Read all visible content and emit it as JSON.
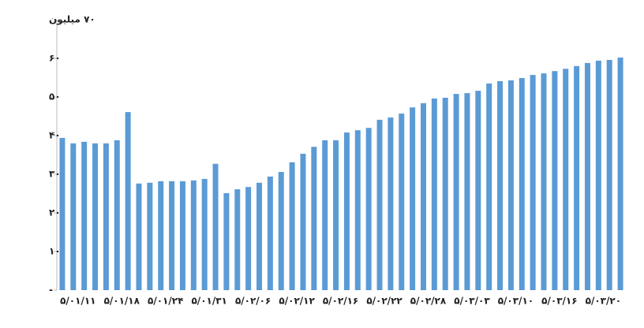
{
  "chart_data": {
    "type": "bar",
    "categories": [
      null,
      "۵/۰۱/۱۱",
      null,
      null,
      null,
      "۵/۰۱/۱۸",
      null,
      null,
      null,
      "۵/۰۱/۲۴",
      null,
      null,
      null,
      "۵/۰۱/۳۱",
      null,
      null,
      null,
      "۵/۰۲/۰۶",
      null,
      null,
      null,
      "۵/۰۲/۱۲",
      null,
      null,
      null,
      "۵/۰۲/۱۶",
      null,
      null,
      null,
      "۵/۰۲/۲۲",
      null,
      null,
      null,
      "۵/۰۲/۲۸",
      null,
      null,
      null,
      "۵/۰۳/۰۳",
      null,
      null,
      null,
      "۵/۰۳/۱۰",
      null,
      null,
      null,
      "۵/۰۳/۱۶",
      null,
      null,
      null,
      "۵/۰۳/۲۰",
      null,
      null
    ],
    "values": [
      39.4,
      38,
      38.4,
      38,
      38,
      38.8,
      46.1,
      27.6,
      27.8,
      28.2,
      28.2,
      28.2,
      28.4,
      28.8,
      32.7,
      25.1,
      26.1,
      26.7,
      27.8,
      29.4,
      30.6,
      33.1,
      35.3,
      37.1,
      38.8,
      38.8,
      40.8,
      41.4,
      42,
      44.1,
      44.7,
      45.7,
      47.3,
      48.4,
      49.6,
      49.8,
      50.8,
      51,
      51.6,
      53.5,
      54.1,
      54.3,
      54.9,
      55.7,
      56.1,
      56.7,
      57.3,
      58,
      58.8,
      59.4,
      59.6,
      60.2
    ],
    "color": "#5b9bd5",
    "ylim": [
      0,
      70
    ],
    "yticks": [
      {
        "value": 0,
        "label": "-"
      },
      {
        "value": 10,
        "label": "۱۰"
      },
      {
        "value": 20,
        "label": "۲۰"
      },
      {
        "value": 30,
        "label": "۳۰"
      },
      {
        "value": 40,
        "label": "۴۰"
      },
      {
        "value": 50,
        "label": "۵۰"
      },
      {
        "value": 60,
        "label": "۶۰"
      },
      {
        "value": 70,
        "label": "۷۰ میلیون"
      }
    ],
    "grid": false
  }
}
